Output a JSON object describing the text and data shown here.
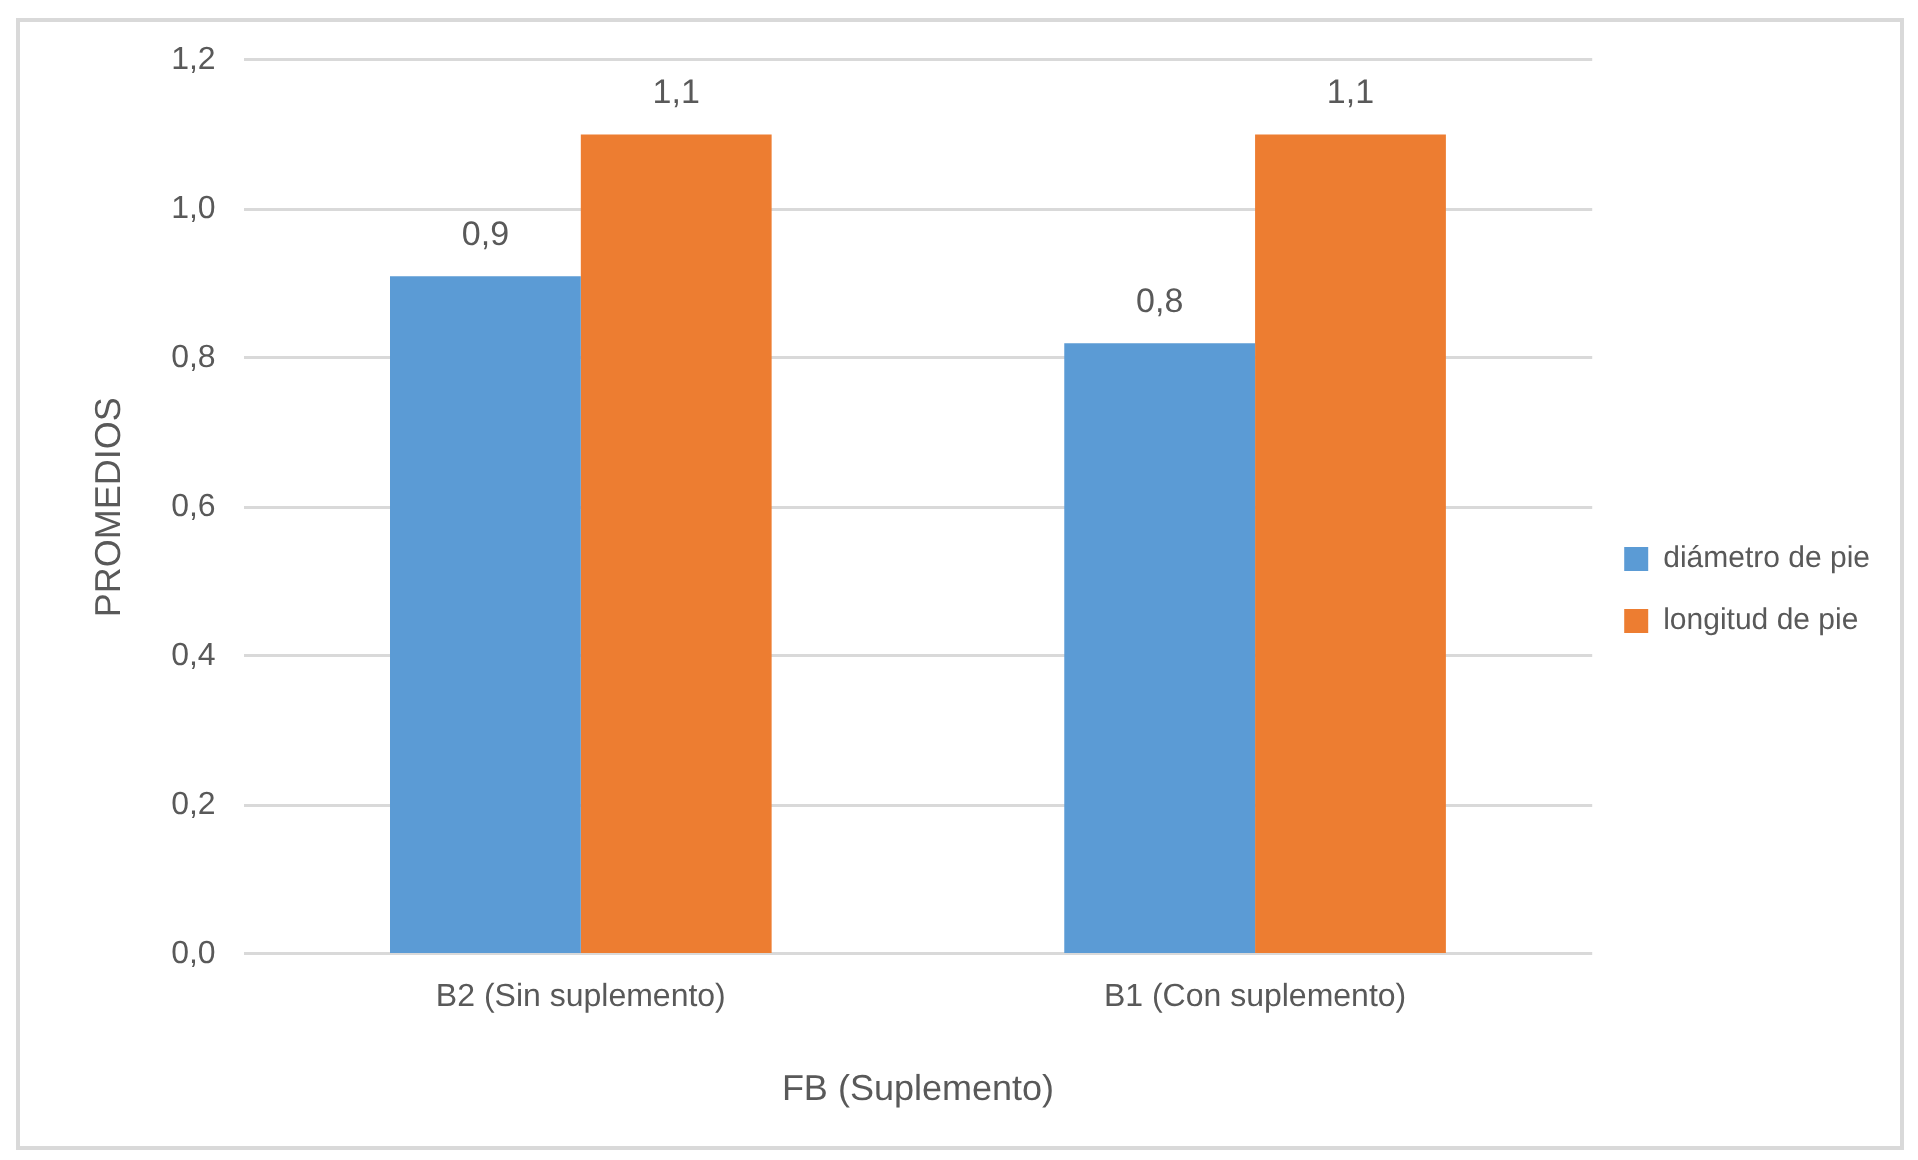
{
  "chart_data": {
    "type": "bar",
    "xlabel": "FB (Suplemento)",
    "ylabel": "PROMEDIOS",
    "categories": [
      "B2 (Sin suplemento)",
      "B1 (Con suplemento)"
    ],
    "series": [
      {
        "name": "diámetro de pie",
        "color": "#5b9bd5",
        "values": [
          0.91,
          0.82
        ],
        "value_labels": [
          "0,9",
          "0,8"
        ]
      },
      {
        "name": "longitud de pie",
        "color": "#ed7d31",
        "values": [
          1.1,
          1.1
        ],
        "value_labels": [
          "1,1",
          "1,1"
        ]
      }
    ],
    "ylim": [
      0,
      1.2
    ],
    "yticks": [
      {
        "value": 0,
        "label": "0,0"
      },
      {
        "value": 0.2,
        "label": "0,2"
      },
      {
        "value": 0.4,
        "label": "0,4"
      },
      {
        "value": 0.6,
        "label": "0,6"
      },
      {
        "value": 0.8,
        "label": "0,8"
      },
      {
        "value": 1,
        "label": "1,0"
      },
      {
        "value": 1.2,
        "label": "1,2"
      }
    ],
    "grid": "y",
    "legend": "right"
  }
}
